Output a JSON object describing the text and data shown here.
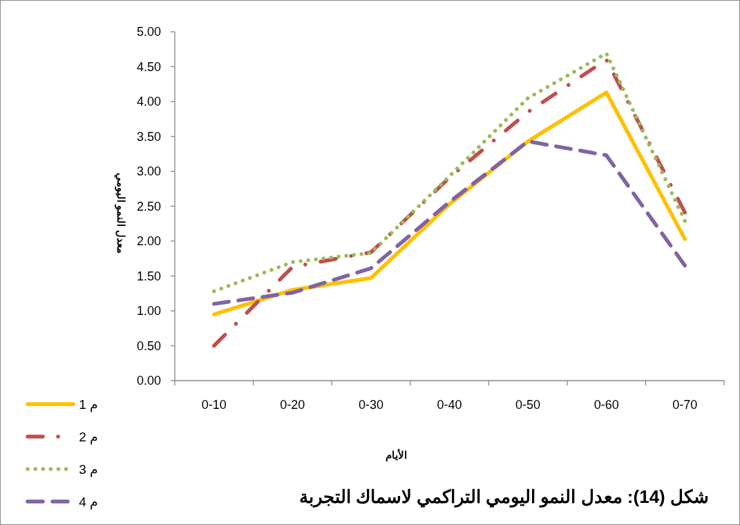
{
  "chart_data": {
    "type": "line",
    "title": "شكل (14): معدل النمو اليومي التراكمي لاسماك التجربة",
    "xlabel": "الأيام",
    "ylabel": "معدل النمو اليومي",
    "categories": [
      "0-10",
      "0-20",
      "0-30",
      "0-40",
      "0-50",
      "0-60",
      "0-70"
    ],
    "series": [
      {
        "name": "م 1",
        "color": "#ffc000",
        "line_style": "solid",
        "values": [
          0.95,
          1.3,
          1.47,
          2.53,
          3.43,
          4.13,
          2.03
        ]
      },
      {
        "name": "م 2",
        "color": "#c0504d",
        "line_style": "dashdot",
        "values": [
          0.5,
          1.63,
          1.84,
          2.91,
          3.85,
          4.6,
          2.41
        ]
      },
      {
        "name": "م 3",
        "color": "#9bbb59",
        "line_style": "dotted",
        "values": [
          1.28,
          1.7,
          1.83,
          2.93,
          4.05,
          4.69,
          2.29
        ]
      },
      {
        "name": "م 4",
        "color": "#8064a2",
        "line_style": "dashed",
        "values": [
          1.1,
          1.26,
          1.61,
          2.56,
          3.43,
          3.23,
          1.65
        ]
      }
    ],
    "ylim": [
      0,
      5
    ],
    "yticks": [
      {
        "value": 0,
        "label": "0.00"
      },
      {
        "value": 0.5,
        "label": "0.50"
      },
      {
        "value": 1,
        "label": "1.00"
      },
      {
        "value": 1.5,
        "label": "1.50"
      },
      {
        "value": 2,
        "label": "2.00"
      },
      {
        "value": 2.5,
        "label": "2.50"
      },
      {
        "value": 3,
        "label": "3.00"
      },
      {
        "value": 3.5,
        "label": "3.50"
      },
      {
        "value": 4,
        "label": "4.00"
      },
      {
        "value": 4.5,
        "label": "4.50"
      },
      {
        "value": 5,
        "label": "5.00"
      }
    ],
    "grid": false,
    "legend": "bottom left",
    "marker": "none"
  }
}
